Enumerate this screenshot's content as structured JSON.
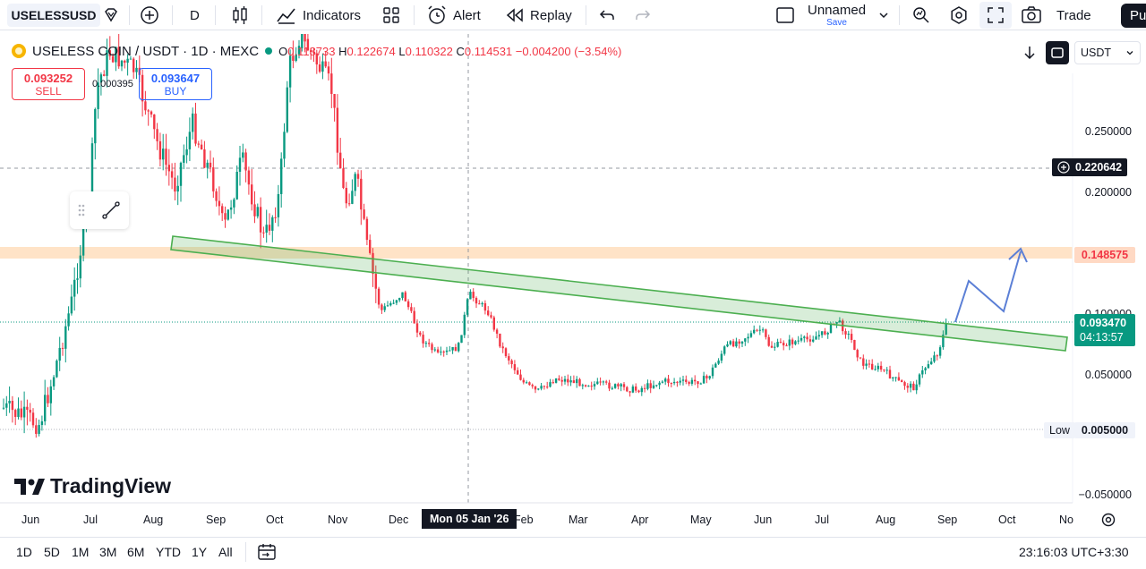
{
  "toolbar": {
    "symbol": "USELESSUSD",
    "interval": "D",
    "indicators_label": "Indicators",
    "alert_label": "Alert",
    "replay_label": "Replay",
    "layout_name": "Unnamed",
    "layout_sub": "Save",
    "trade_label": "Trade",
    "publish_label": "Pu"
  },
  "legend": {
    "title": "USELESS COIN / USDT · 1D · MEXC",
    "o_label": "O",
    "o_val": "0.118733",
    "h_label": "H",
    "h_val": "0.122674",
    "l_label": "L",
    "l_val": "0.110322",
    "c_label": "C",
    "c_val": "0.114531",
    "change": "−0.004200 (−3.54%)"
  },
  "order": {
    "sell_price": "0.093252",
    "sell_label": "SELL",
    "spread": "0.000395",
    "buy_price": "0.093647",
    "buy_label": "BUY"
  },
  "currency": "USDT",
  "price_axis": {
    "labels": [
      "0.250000",
      "0.200000",
      "0.100000",
      "0.050000",
      "0.005000",
      "−0.050000"
    ],
    "crosshair_price": "0.220642",
    "level_price": "0.148575",
    "last_price": "0.093470",
    "countdown": "04:13:57",
    "low_label": "Low",
    "low_price": "0.005000"
  },
  "time_axis": {
    "labels": [
      "Jun",
      "Jul",
      "Aug",
      "Sep",
      "Oct",
      "Nov",
      "Dec",
      "Feb",
      "Mar",
      "Apr",
      "May",
      "Jun",
      "Jul",
      "Aug",
      "Sep",
      "Oct",
      "No"
    ],
    "crosshair_date": "Mon 05 Jan '26"
  },
  "watermark": "TradingView",
  "bottom": {
    "ranges": [
      "1D",
      "5D",
      "1M",
      "3M",
      "6M",
      "YTD",
      "1Y",
      "All"
    ],
    "clock": "23:16:03 UTC+3:30"
  },
  "colors": {
    "up": "#089981",
    "down": "#f23645",
    "channel": "#4caf50",
    "level": "#ffcc99",
    "arrow": "#5b7fd6"
  }
}
